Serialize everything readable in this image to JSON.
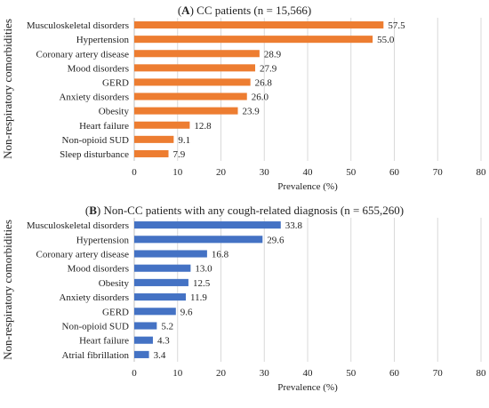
{
  "chart_data": [
    {
      "type": "bar",
      "orientation": "horizontal",
      "panel_label": "A",
      "title": " CC patients (n = 15,566)",
      "xlabel": "Prevalence (%)",
      "ylabel": "Non-respiratory comorbidities",
      "xlim": [
        0,
        80
      ],
      "xticks": [
        0,
        10,
        20,
        30,
        40,
        50,
        60,
        70,
        80
      ],
      "grid": "vertical",
      "bar_color": "#ED7D31",
      "categories": [
        "Musculoskeletal disorders",
        "Hypertension",
        "Coronary artery disease",
        "Mood disorders",
        "GERD",
        "Anxiety disorders",
        "Obesity",
        "Heart failure",
        "Non-opioid SUD",
        "Sleep disturbance"
      ],
      "values": [
        57.5,
        55.0,
        28.9,
        27.9,
        26.8,
        26.0,
        23.9,
        12.8,
        9.1,
        7.9
      ],
      "value_labels": [
        "57.5",
        "55.0",
        "28.9",
        "27.9",
        "26.8",
        "26.0",
        "23.9",
        "12.8",
        "9.1",
        "7.9"
      ]
    },
    {
      "type": "bar",
      "orientation": "horizontal",
      "panel_label": "B",
      "title": " Non-CC patients with any cough-related diagnosis (n = 655,260)",
      "xlabel": "Prevalence (%)",
      "ylabel": "Non-respiratory comorbidities",
      "xlim": [
        0,
        80
      ],
      "xticks": [
        0,
        10,
        20,
        30,
        40,
        50,
        60,
        70,
        80
      ],
      "grid": "vertical",
      "bar_color": "#4472C4",
      "categories": [
        "Musculoskeletal disorders",
        "Hypertension",
        "Coronary artery disease",
        "Mood disorders",
        "Obesity",
        "Anxiety disorders",
        "GERD",
        "Non-opioid SUD",
        "Heart failure",
        "Atrial fibrillation"
      ],
      "values": [
        33.8,
        29.6,
        16.8,
        13.0,
        12.5,
        11.9,
        9.6,
        5.2,
        4.3,
        3.4
      ],
      "value_labels": [
        "33.8",
        "29.6",
        "16.8",
        "13.0",
        "12.5",
        "11.9",
        "9.6",
        "5.2",
        "4.3",
        "3.4"
      ]
    }
  ]
}
